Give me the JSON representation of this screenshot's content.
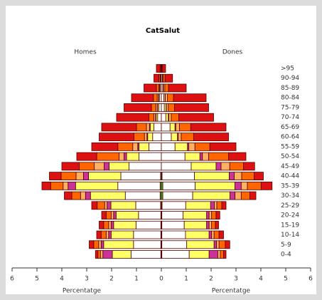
{
  "chart_data": {
    "type": "pyramid",
    "title": "CatSalut",
    "left_label": "Homes",
    "right_label": "Dones",
    "xlabel_left": "Percentatge",
    "xlabel_right": "Percentatge",
    "categories": [
      ">95",
      "90-94",
      "85-89",
      "80-84",
      "75-79",
      "70-74",
      "65-69",
      "60-64",
      "55-59",
      "50-54",
      "45-49",
      "40-44",
      "35-39",
      "30-34",
      "25-29",
      "20-24",
      "15-19",
      "10-14",
      "5-9",
      "0-4"
    ],
    "xlim": [
      -6,
      6
    ],
    "xticks": [
      {
        "value": -6,
        "label": "6"
      },
      {
        "value": -5,
        "label": "5"
      },
      {
        "value": -4,
        "label": "4"
      },
      {
        "value": -3,
        "label": "3"
      },
      {
        "value": -2,
        "label": "2"
      },
      {
        "value": -1,
        "label": "1"
      },
      0,
      1,
      2,
      3,
      4,
      5,
      6
    ],
    "series": [
      {
        "color": "#33cc33",
        "homes": [
          0,
          0,
          0,
          0,
          0,
          0,
          0,
          0,
          0,
          0,
          0,
          0.03,
          0.05,
          0.05,
          0.03,
          0.02,
          0.02,
          0.02,
          0.02,
          0.02
        ],
        "dones": [
          0,
          0,
          0,
          0,
          0,
          0,
          0,
          0,
          0,
          0,
          0,
          0.03,
          0.06,
          0.06,
          0.03,
          0.02,
          0.02,
          0.02,
          0.02,
          0.02
        ]
      },
      {
        "color": "#ffffff",
        "homes": [
          0.02,
          0.03,
          0.05,
          0.08,
          0.1,
          0.15,
          0.3,
          0.35,
          0.5,
          0.9,
          1.3,
          1.6,
          1.7,
          1.4,
          1.0,
          0.9,
          1.0,
          1.1,
          1.1,
          1.2
        ],
        "dones": [
          0.02,
          0.04,
          0.06,
          0.1,
          0.12,
          0.18,
          0.35,
          0.4,
          0.55,
          0.95,
          1.2,
          1.3,
          1.3,
          1.2,
          0.95,
          0.85,
          0.9,
          0.95,
          1.0,
          1.1
        ]
      },
      {
        "color": "#ffff66",
        "homes": [
          0,
          0,
          0.02,
          0.03,
          0.05,
          0.06,
          0.15,
          0.2,
          0.4,
          0.5,
          0.8,
          1.3,
          1.7,
          1.4,
          1.0,
          0.9,
          0.9,
          0.9,
          1.2,
          0.75
        ],
        "dones": [
          0,
          0.01,
          0.03,
          0.05,
          0.07,
          0.1,
          0.2,
          0.25,
          0.5,
          0.6,
          1.0,
          1.4,
          1.6,
          1.5,
          1.0,
          0.95,
          0.9,
          0.95,
          1.1,
          0.8
        ]
      },
      {
        "color": "#cc3399",
        "homes": [
          0,
          0,
          0,
          0.01,
          0.01,
          0.02,
          0.03,
          0.03,
          0.05,
          0.1,
          0.2,
          0.2,
          0.3,
          0.2,
          0.15,
          0.1,
          0.1,
          0.1,
          0.1,
          0.38
        ],
        "dones": [
          0,
          0,
          0,
          0.01,
          0.01,
          0.02,
          0.03,
          0.03,
          0.05,
          0.1,
          0.2,
          0.2,
          0.25,
          0.2,
          0.15,
          0.1,
          0.1,
          0.1,
          0.1,
          0.35
        ]
      },
      {
        "color": "#ffb060",
        "homes": [
          0,
          0.02,
          0.03,
          0.05,
          0.06,
          0.07,
          0.12,
          0.1,
          0.2,
          0.2,
          0.4,
          0.3,
          0.2,
          0.2,
          0.1,
          0.1,
          0.1,
          0.1,
          0.1,
          0.1
        ],
        "dones": [
          0,
          0.03,
          0.05,
          0.08,
          0.08,
          0.1,
          0.15,
          0.12,
          0.25,
          0.25,
          0.35,
          0.3,
          0.25,
          0.25,
          0.1,
          0.1,
          0.1,
          0.1,
          0.1,
          0.1
        ]
      },
      {
        "color": "#ff6600",
        "homes": [
          0.03,
          0.05,
          0.1,
          0.15,
          0.18,
          0.2,
          0.4,
          0.42,
          0.6,
          0.9,
          0.6,
          0.6,
          0.5,
          0.35,
          0.3,
          0.2,
          0.2,
          0.2,
          0.2,
          0.1
        ],
        "dones": [
          0.03,
          0.07,
          0.15,
          0.25,
          0.25,
          0.3,
          0.45,
          0.5,
          0.6,
          0.8,
          0.55,
          0.5,
          0.55,
          0.35,
          0.2,
          0.18,
          0.15,
          0.2,
          0.25,
          0.13
        ]
      },
      {
        "color": "#dd1111",
        "homes": [
          0.15,
          0.2,
          0.5,
          0.88,
          1.1,
          1.3,
          1.4,
          1.4,
          1.05,
          0.8,
          0.7,
          0.47,
          0.35,
          0.3,
          0.22,
          0.18,
          0.18,
          0.18,
          0.18,
          0.1
        ],
        "dones": [
          0.12,
          0.3,
          0.71,
          1.31,
          1.37,
          1.4,
          1.42,
          1.4,
          1.05,
          0.7,
          0.45,
          0.37,
          0.44,
          0.24,
          0.17,
          0.15,
          0.13,
          0.18,
          0.18,
          0.1
        ]
      }
    ]
  }
}
